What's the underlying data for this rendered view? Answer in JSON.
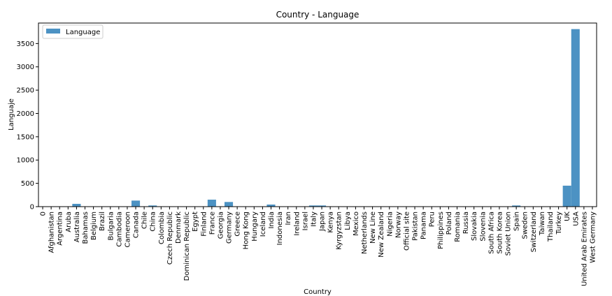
{
  "chart_data": {
    "type": "bar",
    "title": "Country - Language",
    "xlabel": "Country",
    "ylabel": "Languaje",
    "legend": {
      "position": "top-left",
      "entries": [
        "Language"
      ]
    },
    "grid": false,
    "ylim": [
      0,
      3940
    ],
    "yticks": [
      0,
      500,
      1000,
      1500,
      2000,
      2500,
      3000,
      3500
    ],
    "bar_color": "#4c92c3",
    "categories": [
      "0",
      "Afghanistan",
      "Argentina",
      "Aruba",
      "Australia",
      "Bahamas",
      "Belgium",
      "Brazil",
      "Bulgaria",
      "Cambodia",
      "Cameroon",
      "Canada",
      "Chile",
      "China",
      "Colombia",
      "Czech Republic",
      "Denmark",
      "Dominican Republic",
      "Egypt",
      "Finland",
      "France",
      "Georgia",
      "Germany",
      "Greece",
      "Hong Kong",
      "Hungary",
      "Iceland",
      "India",
      "Indonesia",
      "Iran",
      "Ireland",
      "Israel",
      "Italy",
      "Japan",
      "Kenya",
      "Kyrgyzstan",
      "Libya",
      "Mexico",
      "Netherlands",
      "New Line",
      "New Zealand",
      "Nigeria",
      "Norway",
      "Official site",
      "Pakistan",
      "Panama",
      "Peru",
      "Philippines",
      "Poland",
      "Romania",
      "Russia",
      "Slovakia",
      "Slovenia",
      "South Africa",
      "South Korea",
      "Soviet Union",
      "Spain",
      "Sweden",
      "Switzerland",
      "Taiwan",
      "Thailand",
      "Turkey",
      "UK",
      "USA",
      "United Arab Emirates",
      "West Germany"
    ],
    "series": [
      {
        "name": "Language",
        "values": [
          4,
          2,
          4,
          1,
          60,
          2,
          5,
          6,
          1,
          1,
          1,
          130,
          2,
          25,
          2,
          5,
          5,
          2,
          1,
          1,
          150,
          1,
          100,
          2,
          5,
          2,
          5,
          45,
          2,
          2,
          5,
          5,
          25,
          25,
          1,
          1,
          1,
          5,
          5,
          2,
          5,
          2,
          5,
          1,
          1,
          1,
          1,
          2,
          5,
          5,
          5,
          2,
          2,
          5,
          5,
          2,
          25,
          5,
          5,
          2,
          5,
          2,
          450,
          3810,
          2,
          5
        ]
      }
    ]
  }
}
